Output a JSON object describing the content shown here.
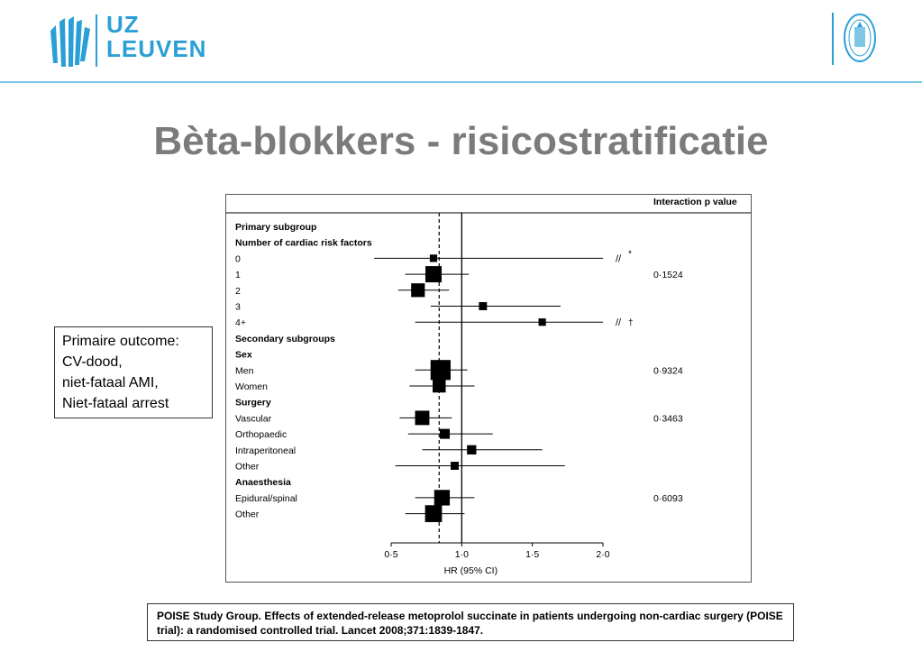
{
  "header": {
    "logo_line1": "UZ",
    "logo_line2": "LEUVEN",
    "brand_color": "#2a9fd6"
  },
  "title": "Bèta-blokkers - risicostratificatie",
  "outcome_box": {
    "lines": [
      "Primaire outcome:",
      "CV-dood,",
      "niet-fataal AMI,",
      "Niet-fataal arrest"
    ]
  },
  "citation": "POISE Study Group. Effects of extended-release metoprolol succinate in patients undergoing non-cardiac surgery (POISE trial): a randomised controlled trial. Lancet 2008;371:1839-1847.",
  "chart_data": {
    "type": "forest",
    "p_value_header": "Interaction p value",
    "xlabel": "HR (95% CI)",
    "x_ticks": [
      "0·5",
      "1·0",
      "1·5",
      "2·0"
    ],
    "x_tick_values": [
      0.5,
      1.0,
      1.5,
      2.0
    ],
    "xlim": [
      0.5,
      2.0
    ],
    "reference_line": 1.0,
    "overall_line": 0.84,
    "rows": [
      {
        "label": "Primary subgroup",
        "bold": true
      },
      {
        "label": "Number of cardiac risk factors",
        "bold": true
      },
      {
        "label": "0",
        "hr": 0.8,
        "lo": 0.38,
        "hi": 2.0,
        "size": 0.3,
        "truncated": true,
        "marker": "*"
      },
      {
        "label": "1",
        "hr": 0.8,
        "lo": 0.6,
        "hi": 1.05,
        "size": 1.0,
        "p": "0·1524"
      },
      {
        "label": "2",
        "hr": 0.69,
        "lo": 0.55,
        "hi": 0.91,
        "size": 0.8
      },
      {
        "label": "3",
        "hr": 1.15,
        "lo": 0.78,
        "hi": 1.7,
        "size": 0.35
      },
      {
        "label": "4+",
        "hr": 1.57,
        "lo": 0.67,
        "hi": 2.0,
        "size": 0.3,
        "truncated": true,
        "marker": "†"
      },
      {
        "label": "Secondary subgroups",
        "bold": true
      },
      {
        "label": "Sex",
        "bold": true
      },
      {
        "label": "Men",
        "hr": 0.85,
        "lo": 0.67,
        "hi": 1.04,
        "size": 1.3,
        "p": "0·9324"
      },
      {
        "label": "Women",
        "hr": 0.84,
        "lo": 0.63,
        "hi": 1.09,
        "size": 0.75
      },
      {
        "label": "Surgery",
        "bold": true
      },
      {
        "label": "Vascular",
        "hr": 0.72,
        "lo": 0.56,
        "hi": 0.93,
        "size": 0.85,
        "p": "0·3463"
      },
      {
        "label": "Orthopaedic",
        "hr": 0.88,
        "lo": 0.62,
        "hi": 1.22,
        "size": 0.5
      },
      {
        "label": "Intraperitoneal",
        "hr": 1.07,
        "lo": 0.72,
        "hi": 1.57,
        "size": 0.45
      },
      {
        "label": "Other",
        "hr": 0.95,
        "lo": 0.53,
        "hi": 1.73,
        "size": 0.35
      },
      {
        "label": "Anaesthesia",
        "bold": true
      },
      {
        "label": "Epidural/spinal",
        "hr": 0.86,
        "lo": 0.67,
        "hi": 1.09,
        "size": 0.95,
        "p": "0·6093"
      },
      {
        "label": "Other",
        "hr": 0.8,
        "lo": 0.6,
        "hi": 1.02,
        "size": 1.05
      }
    ]
  }
}
